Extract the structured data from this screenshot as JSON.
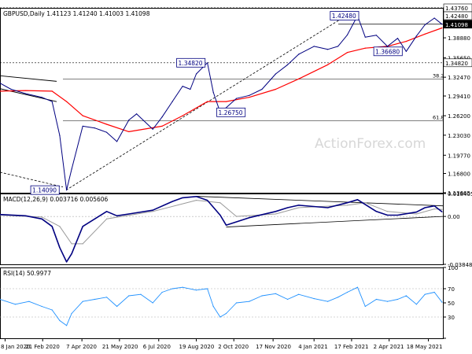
{
  "chart_data": [
    {
      "type": "line",
      "panel": "price",
      "header": "GBPUSD,Daily  1.41123 1.41240 1.41003 1.41098",
      "ylim": [
        1.1366,
        1.4376
      ],
      "y_ticks": [
        "1.43760",
        "1.41098",
        "1.38880",
        "1.35650",
        "1.32470",
        "1.29410",
        "1.26200",
        "1.23030",
        "1.19770",
        "1.16800",
        "1.13665"
      ],
      "x_ticks": [
        "8 Jan 2020",
        "21 Feb 2020",
        "7 Apr 2020",
        "21 May 2020",
        "6 Jul 2020",
        "19 Aug 2020",
        "2 Oct 2020",
        "17 Nov 2020",
        "4 Jan 2021",
        "17 Feb 2021",
        "2 Apr 2021",
        "18 May 2021"
      ],
      "series": [
        {
          "color": "#000080",
          "x": [
            "2020-01-02",
            "2020-01-15",
            "2020-02-01",
            "2020-02-20",
            "2020-03-03",
            "2020-03-12",
            "2020-03-20",
            "2020-03-26",
            "2020-04-08",
            "2020-04-22",
            "2020-05-06",
            "2020-05-18",
            "2020-06-01",
            "2020-06-10",
            "2020-06-29",
            "2020-07-10",
            "2020-07-22",
            "2020-08-03",
            "2020-08-12",
            "2020-08-19",
            "2020-09-01",
            "2020-09-08",
            "2020-09-16",
            "2020-09-23",
            "2020-10-05",
            "2020-10-20",
            "2020-11-04",
            "2020-11-20",
            "2020-12-04",
            "2020-12-17",
            "2021-01-04",
            "2021-01-20",
            "2021-02-01",
            "2021-02-12",
            "2021-02-24",
            "2021-03-05",
            "2021-03-18",
            "2021-03-31",
            "2021-04-12",
            "2021-04-22",
            "2021-05-04",
            "2021-05-14",
            "2021-05-25",
            "2021-06-03"
          ],
          "y": [
            1.315,
            1.305,
            1.298,
            1.292,
            1.285,
            1.23,
            1.1409,
            1.175,
            1.245,
            1.242,
            1.235,
            1.22,
            1.255,
            1.265,
            1.24,
            1.26,
            1.285,
            1.31,
            1.305,
            1.33,
            1.3482,
            1.3,
            1.2675,
            1.275,
            1.29,
            1.295,
            1.305,
            1.33,
            1.345,
            1.362,
            1.375,
            1.37,
            1.375,
            1.3935,
            1.4248,
            1.39,
            1.393,
            1.375,
            1.388,
            1.3668,
            1.3918,
            1.41,
            1.421,
            1.41098
          ]
        },
        {
          "name": "SMA",
          "color": "#ff0000",
          "x": [
            "2020-01-02",
            "2020-02-01",
            "2020-03-03",
            "2020-03-20",
            "2020-04-08",
            "2020-05-06",
            "2020-06-01",
            "2020-07-10",
            "2020-08-03",
            "2020-09-01",
            "2020-09-23",
            "2020-10-20",
            "2020-11-20",
            "2020-12-17",
            "2021-01-20",
            "2021-02-12",
            "2021-03-05",
            "2021-03-31",
            "2021-04-22",
            "2021-05-14",
            "2021-06-03"
          ],
          "y": [
            1.302,
            1.303,
            1.302,
            1.285,
            1.262,
            1.248,
            1.236,
            1.245,
            1.262,
            1.285,
            1.285,
            1.292,
            1.305,
            1.322,
            1.345,
            1.365,
            1.372,
            1.375,
            1.383,
            1.395,
            1.405
          ]
        }
      ],
      "annotations": [
        "1.34820",
        "1.26750",
        "1.42480",
        "1.36680",
        "1.14090",
        "38.2",
        "61.8"
      ],
      "right_labels": [
        "1.43760",
        "1.42480",
        "1.41098",
        "1.34820"
      ],
      "watermark": "ActionForex.com"
    },
    {
      "type": "line",
      "panel": "macd",
      "header": "MACD(12,26,9) 0.003716 0.005606",
      "ylim": [
        -0.038483,
        0.018405
      ],
      "y_ticks": [
        "0.018405",
        "0.00",
        "-0.038483"
      ],
      "series": [
        {
          "color": "#000080",
          "x": [
            "2020-01-02",
            "2020-02-01",
            "2020-02-20",
            "2020-03-03",
            "2020-03-12",
            "2020-03-20",
            "2020-03-26",
            "2020-04-08",
            "2020-05-06",
            "2020-05-18",
            "2020-06-01",
            "2020-06-29",
            "2020-07-22",
            "2020-08-03",
            "2020-08-19",
            "2020-09-01",
            "2020-09-16",
            "2020-09-23",
            "2020-10-20",
            "2020-11-20",
            "2020-12-04",
            "2020-12-17",
            "2021-01-20",
            "2021-02-12",
            "2021-02-24",
            "2021-03-18",
            "2021-03-31",
            "2021-04-12",
            "2021-05-04",
            "2021-05-14",
            "2021-05-25",
            "2021-06-03"
          ],
          "y": [
            0.0015,
            0.0005,
            -0.002,
            -0.008,
            -0.025,
            -0.0365,
            -0.03,
            -0.008,
            0.004,
            0.0005,
            0.002,
            0.005,
            0.012,
            0.015,
            0.016,
            0.013,
            0.001,
            -0.007,
            -0.001,
            0.004,
            0.007,
            0.009,
            0.007,
            0.011,
            0.0135,
            0.004,
            0.001,
            0.001,
            0.0035,
            0.007,
            0.0085,
            0.003716
          ]
        },
        {
          "name": "Signal",
          "color": "#999999",
          "x": [
            "2020-01-02",
            "2020-02-20",
            "2020-03-12",
            "2020-03-26",
            "2020-04-08",
            "2020-05-06",
            "2020-06-29",
            "2020-08-19",
            "2020-09-16",
            "2020-10-05",
            "2020-11-20",
            "2020-12-17",
            "2021-02-12",
            "2021-03-05",
            "2021-03-31",
            "2021-05-04",
            "2021-05-25",
            "2021-06-03"
          ],
          "y": [
            0.001,
            -0.0005,
            -0.008,
            -0.022,
            -0.022,
            -0.002,
            0.004,
            0.013,
            0.011,
            0.0,
            0.002,
            0.007,
            0.009,
            0.011,
            0.004,
            0.002,
            0.006,
            0.005606
          ]
        }
      ]
    },
    {
      "type": "line",
      "panel": "rsi",
      "header": "RSI(14) 50.9977",
      "ylim": [
        0,
        100
      ],
      "y_ticks": [
        "100",
        "70",
        "50",
        "30",
        "0"
      ],
      "series": [
        {
          "color": "#1e90ff",
          "x": [
            "2020-01-02",
            "2020-01-20",
            "2020-02-05",
            "2020-02-20",
            "2020-03-03",
            "2020-03-12",
            "2020-03-20",
            "2020-03-26",
            "2020-04-08",
            "2020-04-22",
            "2020-05-06",
            "2020-05-18",
            "2020-06-01",
            "2020-06-15",
            "2020-06-29",
            "2020-07-10",
            "2020-07-22",
            "2020-08-03",
            "2020-08-19",
            "2020-09-01",
            "2020-09-08",
            "2020-09-16",
            "2020-09-23",
            "2020-10-05",
            "2020-10-20",
            "2020-11-04",
            "2020-11-20",
            "2020-12-04",
            "2020-12-17",
            "2021-01-04",
            "2021-01-20",
            "2021-02-01",
            "2021-02-12",
            "2021-02-24",
            "2021-03-05",
            "2021-03-18",
            "2021-03-31",
            "2021-04-12",
            "2021-04-22",
            "2021-05-04",
            "2021-05-14",
            "2021-05-25",
            "2021-06-03"
          ],
          "y": [
            55,
            48,
            52,
            45,
            40,
            25,
            18,
            35,
            52,
            55,
            58,
            45,
            60,
            62,
            50,
            65,
            70,
            72,
            68,
            70,
            45,
            30,
            35,
            50,
            52,
            60,
            63,
            55,
            62,
            56,
            52,
            58,
            65,
            72,
            45,
            55,
            52,
            55,
            60,
            48,
            62,
            65,
            50.9977
          ]
        }
      ]
    }
  ]
}
